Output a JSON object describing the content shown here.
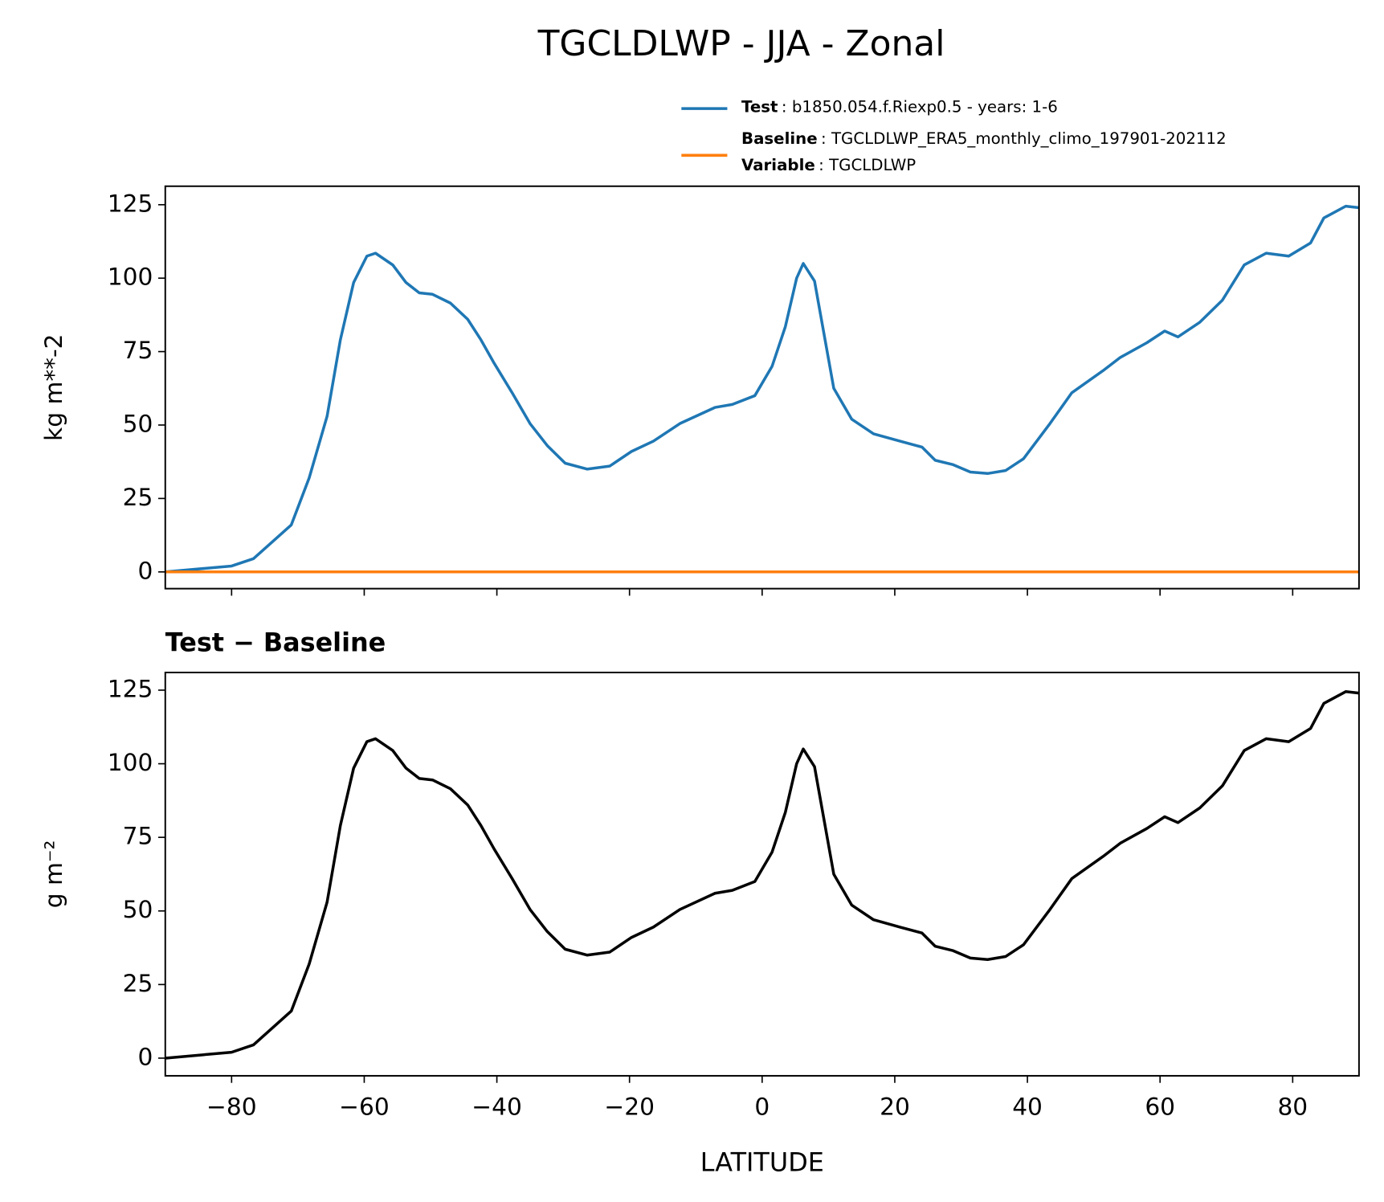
{
  "title": "TGCLDLWP - JJA - Zonal",
  "chart_data": [
    {
      "type": "line",
      "ylabel": "kg m**-2",
      "x": [
        -90,
        -80,
        -76.7,
        -71,
        -68.3,
        -65.6,
        -63.6,
        -61.6,
        -59.6,
        -58.3,
        -55.7,
        -53.7,
        -51.7,
        -49.7,
        -47,
        -44.4,
        -42.4,
        -40.4,
        -37.7,
        -35,
        -32.4,
        -29.7,
        -26.4,
        -23,
        -19.7,
        -16.4,
        -12.4,
        -7.1,
        -4.5,
        -1.1,
        1.5,
        3.5,
        5.2,
        6.2,
        7.9,
        10.8,
        13.5,
        16.8,
        20.8,
        24.1,
        26.1,
        28.8,
        31.4,
        34,
        36.7,
        39.4,
        43.4,
        46.7,
        51.4,
        54,
        58,
        60.7,
        62.7,
        66,
        69.4,
        72.7,
        76,
        79.4,
        82.7,
        84.7,
        88,
        90
      ],
      "series": [
        {
          "name": "Test",
          "description": ": b1850.054.f.Riexp0.5 - years: 1-6",
          "color": "#1f77b4",
          "values": [
            0,
            2,
            4.5,
            16,
            32,
            53,
            79,
            98.5,
            107.5,
            108.5,
            104.5,
            98.5,
            95,
            94.5,
            91.5,
            86,
            79,
            71,
            61,
            50.5,
            43,
            37,
            35,
            36,
            41,
            44.5,
            50.5,
            56,
            57,
            60,
            70,
            83.5,
            100,
            105,
            99,
            62.5,
            52,
            47,
            44.5,
            42.5,
            38,
            36.5,
            34,
            33.5,
            34.5,
            38.5,
            50.5,
            61,
            68.5,
            73,
            78,
            82,
            80,
            85,
            92.5,
            104.5,
            108.5,
            107.5,
            112,
            120.5,
            124.5,
            124
          ]
        },
        {
          "name": "Baseline",
          "description": ": TGCLDLWP_ERA5_monthly_climo_197901-202112",
          "color": "#ff7f0e",
          "values": [
            0,
            0,
            0,
            0,
            0,
            0,
            0,
            0,
            0,
            0,
            0,
            0,
            0,
            0,
            0,
            0,
            0,
            0,
            0,
            0,
            0,
            0,
            0,
            0,
            0,
            0,
            0,
            0,
            0,
            0,
            0,
            0,
            0,
            0,
            0,
            0,
            0,
            0,
            0,
            0,
            0,
            0,
            0,
            0,
            0,
            0,
            0,
            0,
            0,
            0,
            0,
            0,
            0,
            0,
            0,
            0,
            0,
            0,
            0,
            0,
            0,
            0
          ]
        }
      ],
      "legend_extra": {
        "name": "Variable",
        "description": ": TGCLDLWP"
      },
      "xlim": [
        -90,
        90
      ],
      "xticks": [
        -80,
        -60,
        -40,
        -20,
        0,
        20,
        40,
        60,
        80
      ],
      "ylim": [
        -5.7,
        131.3
      ],
      "yticks": [
        0,
        25,
        50,
        75,
        100,
        125
      ]
    },
    {
      "type": "line",
      "title": "Test − Baseline",
      "ylabel": "g m⁻²",
      "xlabel": "LATITUDE",
      "x": [
        -90,
        -80,
        -76.7,
        -71,
        -68.3,
        -65.6,
        -63.6,
        -61.6,
        -59.6,
        -58.3,
        -55.7,
        -53.7,
        -51.7,
        -49.7,
        -47,
        -44.4,
        -42.4,
        -40.4,
        -37.7,
        -35,
        -32.4,
        -29.7,
        -26.4,
        -23,
        -19.7,
        -16.4,
        -12.4,
        -7.1,
        -4.5,
        -1.1,
        1.5,
        3.5,
        5.2,
        6.2,
        7.9,
        10.8,
        13.5,
        16.8,
        20.8,
        24.1,
        26.1,
        28.8,
        31.4,
        34,
        36.7,
        39.4,
        43.4,
        46.7,
        51.4,
        54,
        58,
        60.7,
        62.7,
        66,
        69.4,
        72.7,
        76,
        79.4,
        82.7,
        84.7,
        88,
        90
      ],
      "series": [
        {
          "color": "#000000",
          "values": [
            0,
            2,
            4.5,
            16,
            32,
            53,
            79,
            98.5,
            107.5,
            108.5,
            104.5,
            98.5,
            95,
            94.5,
            91.5,
            86,
            79,
            71,
            61,
            50.5,
            43,
            37,
            35,
            36,
            41,
            44.5,
            50.5,
            56,
            57,
            60,
            70,
            83.5,
            100,
            105,
            99,
            62.5,
            52,
            47,
            44.5,
            42.5,
            38,
            36.5,
            34,
            33.5,
            34.5,
            38.5,
            50.5,
            61,
            68.5,
            73,
            78,
            82,
            80,
            85,
            92.5,
            104.5,
            108.5,
            107.5,
            112,
            120.5,
            124.5,
            124
          ]
        }
      ],
      "xlim": [
        -90,
        90
      ],
      "xticks": [
        {
          "value": -80,
          "label": "−80"
        },
        {
          "value": -60,
          "label": "−60"
        },
        {
          "value": -40,
          "label": "−40"
        },
        {
          "value": -20,
          "label": "−20"
        },
        0,
        20,
        40,
        60,
        80
      ],
      "ylim": [
        -6,
        131
      ],
      "yticks": [
        0,
        25,
        50,
        75,
        100,
        125
      ]
    }
  ]
}
